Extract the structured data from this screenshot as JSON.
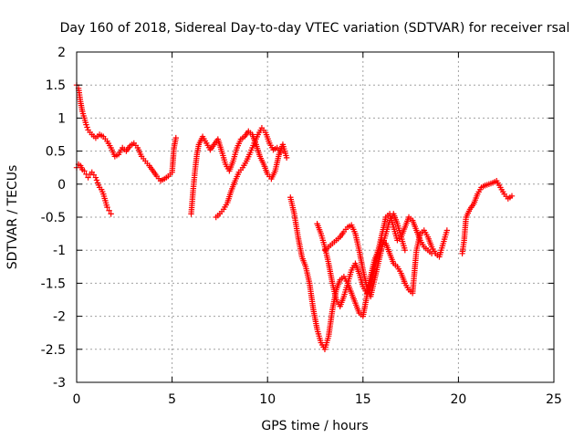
{
  "chart_data": {
    "type": "scatter",
    "title": "Day 160 of 2018, Sidereal Day-to-day VTEC variation (SDTVAR) for receiver rsal",
    "xlabel": "GPS time / hours",
    "ylabel": "SDTVAR / TECUs",
    "xlim": [
      0,
      25
    ],
    "ylim": [
      -3,
      2
    ],
    "xticks": [
      0,
      5,
      10,
      15,
      20,
      25
    ],
    "yticks": [
      -3,
      -2.5,
      -2,
      -1.5,
      -1,
      -0.5,
      0,
      0.5,
      1,
      1.5,
      2
    ],
    "xtick_labels": [
      "0",
      "5",
      "10",
      "15",
      "20",
      "25"
    ],
    "ytick_labels": [
      "-3",
      "-2.5",
      "-2",
      "-1.5",
      "-1",
      "-0.5",
      "0",
      "0.5",
      "1",
      "1.5",
      "2"
    ],
    "grid": true,
    "marker": "plus",
    "color": "#ff0000",
    "series": [
      {
        "x": [
          0.0,
          0.1,
          0.2,
          0.3,
          0.4,
          0.5,
          0.6,
          0.8,
          1.0,
          1.2,
          1.4,
          1.6,
          1.8,
          2.0,
          2.2,
          2.4,
          2.6,
          2.8,
          3.0,
          3.2,
          3.4,
          3.6,
          3.8,
          4.0,
          4.2,
          4.4,
          4.6,
          4.8,
          5.0,
          5.1,
          5.2
        ],
        "y": [
          1.5,
          1.45,
          1.25,
          1.1,
          1.0,
          0.9,
          0.82,
          0.75,
          0.7,
          0.75,
          0.72,
          0.65,
          0.55,
          0.42,
          0.45,
          0.55,
          0.5,
          0.58,
          0.62,
          0.55,
          0.42,
          0.35,
          0.28,
          0.2,
          0.12,
          0.05,
          0.08,
          0.12,
          0.18,
          0.55,
          0.7
        ]
      },
      {
        "x": [
          0.0,
          0.1,
          0.2,
          0.3,
          0.4,
          0.5,
          0.6,
          0.7,
          0.8,
          0.9,
          1.0,
          1.1,
          1.2,
          1.3,
          1.4,
          1.5,
          1.6,
          1.7,
          1.8
        ],
        "y": [
          0.25,
          0.3,
          0.28,
          0.22,
          0.2,
          0.15,
          0.1,
          0.15,
          0.18,
          0.14,
          0.1,
          0.02,
          -0.05,
          -0.08,
          -0.15,
          -0.25,
          -0.35,
          -0.4,
          -0.45
        ]
      },
      {
        "x": [
          6.0,
          6.1,
          6.2,
          6.3,
          6.4,
          6.6,
          6.8,
          7.0,
          7.2,
          7.4,
          7.6,
          7.8,
          8.0,
          8.2,
          8.4,
          8.6,
          8.8,
          9.0,
          9.2,
          9.4,
          9.6,
          9.8,
          10.0,
          10.2,
          10.4,
          10.6,
          10.8,
          11.0
        ],
        "y": [
          -0.45,
          -0.1,
          0.2,
          0.45,
          0.6,
          0.72,
          0.62,
          0.52,
          0.6,
          0.68,
          0.5,
          0.3,
          0.2,
          0.35,
          0.55,
          0.68,
          0.72,
          0.8,
          0.75,
          0.6,
          0.42,
          0.3,
          0.15,
          0.08,
          0.2,
          0.45,
          0.6,
          0.4
        ]
      },
      {
        "x": [
          7.3,
          7.5,
          7.7,
          7.9,
          8.1,
          8.3,
          8.5,
          8.7,
          8.9,
          9.1,
          9.3,
          9.5,
          9.7,
          9.9,
          10.1,
          10.3,
          10.5,
          10.7
        ],
        "y": [
          -0.5,
          -0.45,
          -0.38,
          -0.28,
          -0.1,
          0.05,
          0.18,
          0.25,
          0.35,
          0.48,
          0.62,
          0.75,
          0.85,
          0.78,
          0.62,
          0.52,
          0.55,
          0.48
        ]
      },
      {
        "x": [
          11.2,
          11.4,
          11.6,
          11.8,
          12.0,
          12.2,
          12.4,
          12.6,
          12.8,
          13.0,
          13.2,
          13.4,
          13.6,
          13.8,
          14.0,
          14.2,
          14.4,
          14.6,
          14.8,
          15.0,
          15.2,
          15.4,
          15.6,
          15.8,
          16.0,
          16.2,
          16.4,
          16.6,
          16.8,
          17.0,
          17.2,
          17.4,
          17.6,
          17.8,
          18.0,
          18.2,
          18.4,
          18.6,
          18.8,
          19.0,
          19.2,
          19.4
        ],
        "y": [
          -0.2,
          -0.45,
          -0.8,
          -1.1,
          -1.25,
          -1.5,
          -1.9,
          -2.2,
          -2.4,
          -2.5,
          -2.3,
          -1.9,
          -1.6,
          -1.45,
          -1.4,
          -1.5,
          -1.65,
          -1.8,
          -1.95,
          -2.0,
          -1.7,
          -1.4,
          -1.15,
          -1.0,
          -0.85,
          -0.9,
          -1.05,
          -1.2,
          -1.25,
          -1.35,
          -1.5,
          -1.6,
          -1.65,
          -1.0,
          -0.75,
          -0.7,
          -0.8,
          -0.95,
          -1.05,
          -1.1,
          -0.9,
          -0.7
        ]
      },
      {
        "x": [
          12.6,
          12.8,
          13.0,
          13.2,
          13.4,
          13.6,
          13.8,
          14.0,
          14.2,
          14.4,
          14.6,
          14.8,
          15.0,
          15.2,
          15.4,
          15.6,
          15.8,
          16.0,
          16.2,
          16.4,
          16.6,
          16.8,
          17.0,
          17.2,
          17.4,
          17.6,
          17.8,
          18.0,
          18.2,
          18.4,
          18.6
        ],
        "y": [
          -0.6,
          -0.75,
          -0.95,
          -1.2,
          -1.5,
          -1.75,
          -1.85,
          -1.7,
          -1.5,
          -1.3,
          -1.2,
          -1.35,
          -1.55,
          -1.65,
          -1.5,
          -1.25,
          -1.0,
          -0.75,
          -0.5,
          -0.45,
          -0.65,
          -0.85,
          -0.8,
          -0.65,
          -0.5,
          -0.55,
          -0.7,
          -0.85,
          -0.95,
          -1.0,
          -1.05
        ]
      },
      {
        "x": [
          13.0,
          13.2,
          13.4,
          13.6,
          13.8,
          14.0,
          14.2,
          14.4,
          14.6,
          14.8,
          15.0,
          15.2,
          15.4,
          15.6,
          15.8,
          16.0,
          16.2,
          16.4,
          16.6,
          16.8,
          17.0,
          17.2
        ],
        "y": [
          -1.0,
          -0.95,
          -0.9,
          -0.85,
          -0.8,
          -0.72,
          -0.65,
          -0.62,
          -0.75,
          -1.0,
          -1.3,
          -1.55,
          -1.7,
          -1.45,
          -1.2,
          -0.95,
          -0.75,
          -0.55,
          -0.45,
          -0.6,
          -0.8,
          -1.0
        ]
      },
      {
        "x": [
          20.2,
          20.3,
          20.4,
          20.6,
          20.8,
          21.0,
          21.2,
          21.4,
          21.6,
          21.8,
          22.0,
          22.2,
          22.4,
          22.6,
          22.8
        ],
        "y": [
          -1.05,
          -0.85,
          -0.5,
          -0.38,
          -0.3,
          -0.15,
          -0.05,
          -0.02,
          0.0,
          0.02,
          0.05,
          -0.05,
          -0.15,
          -0.22,
          -0.18
        ]
      }
    ]
  }
}
